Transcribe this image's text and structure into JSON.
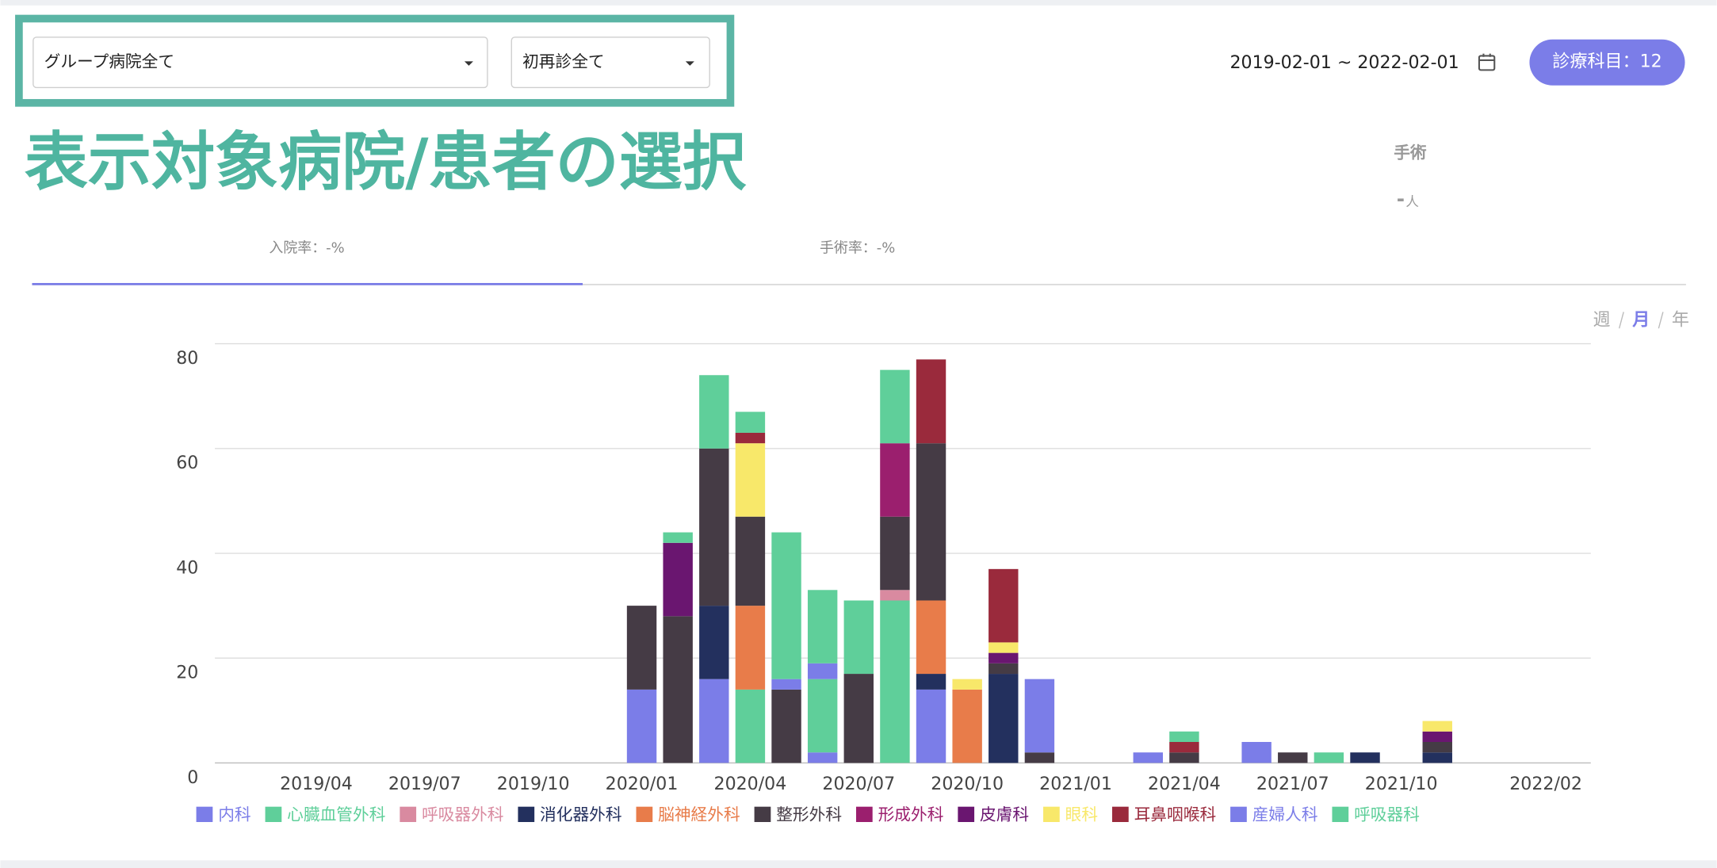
{
  "ui": {
    "hospital_filter": "グループ病院全て",
    "visit_filter": "初再診全て",
    "date_range": "2019-02-01 ~ 2022-02-01",
    "department_button": "診療科目：12",
    "annotation": "表示対象病院/患者の選択",
    "surgery_title": "手術",
    "surgery_count": "-",
    "surgery_unit": "人",
    "tabs": [
      "入院率：-%",
      "手術率：-%"
    ],
    "active_tab_index": 0,
    "period_options": [
      "週",
      "月",
      "年"
    ],
    "active_period_index": 1
  },
  "chart_data": {
    "type": "stacked-bar",
    "categories": [
      null,
      null,
      "2019/04",
      null,
      null,
      "2019/07",
      null,
      null,
      "2019/10",
      null,
      null,
      "2020/01",
      null,
      null,
      "2020/04",
      null,
      null,
      "2020/07",
      null,
      null,
      "2020/10",
      null,
      null,
      "2021/01",
      null,
      null,
      "2021/04",
      null,
      null,
      "2021/07",
      null,
      null,
      "2021/10",
      null,
      null,
      null,
      "2022/02"
    ],
    "ylim": [
      0,
      80
    ],
    "yticks": [
      0,
      20,
      40,
      60,
      80
    ],
    "grid": true,
    "legend": "bottom",
    "series": [
      {
        "name": "内科",
        "color": "#7b7de8",
        "values": [
          0,
          0,
          0,
          0,
          0,
          0,
          0,
          0,
          0,
          0,
          0,
          14,
          0,
          16,
          0,
          0,
          2,
          0,
          0,
          14,
          0,
          0,
          0,
          0,
          0,
          2,
          0,
          0,
          4,
          0,
          0,
          0,
          0,
          0,
          0,
          0,
          0
        ]
      },
      {
        "name": "心臓血管外科",
        "color": "#5fcf9a",
        "values": [
          0,
          0,
          0,
          0,
          0,
          0,
          0,
          0,
          0,
          0,
          0,
          0,
          0,
          0,
          14,
          0,
          14,
          0,
          31,
          0,
          0,
          0,
          0,
          0,
          0,
          0,
          0,
          0,
          0,
          0,
          2,
          0,
          0,
          0,
          0,
          0,
          0
        ]
      },
      {
        "name": "呼吸器外科",
        "color": "#d98aa0",
        "values": [
          0,
          0,
          0,
          0,
          0,
          0,
          0,
          0,
          0,
          0,
          0,
          0,
          0,
          0,
          0,
          0,
          0,
          0,
          2,
          0,
          0,
          0,
          0,
          0,
          0,
          0,
          0,
          0,
          0,
          0,
          0,
          0,
          0,
          0,
          0,
          0,
          0
        ]
      },
      {
        "name": "消化器外科",
        "color": "#23305e",
        "values": [
          0,
          0,
          0,
          0,
          0,
          0,
          0,
          0,
          0,
          0,
          0,
          0,
          0,
          14,
          0,
          0,
          0,
          0,
          0,
          3,
          0,
          17,
          0,
          0,
          0,
          0,
          0,
          0,
          0,
          0,
          0,
          2,
          0,
          2,
          0,
          0,
          0
        ]
      },
      {
        "name": "脳神経外科",
        "color": "#e87c4a",
        "values": [
          0,
          0,
          0,
          0,
          0,
          0,
          0,
          0,
          0,
          0,
          0,
          0,
          0,
          0,
          16,
          0,
          0,
          0,
          0,
          14,
          14,
          0,
          0,
          0,
          0,
          0,
          0,
          0,
          0,
          0,
          0,
          0,
          0,
          0,
          0,
          0,
          0
        ]
      },
      {
        "name": "整形外科",
        "color": "#453b45",
        "values": [
          0,
          0,
          0,
          0,
          0,
          0,
          0,
          0,
          0,
          0,
          0,
          16,
          28,
          30,
          17,
          14,
          0,
          17,
          14,
          30,
          0,
          2,
          2,
          0,
          0,
          0,
          2,
          0,
          0,
          2,
          0,
          0,
          0,
          2,
          0,
          0,
          0
        ]
      },
      {
        "name": "形成外科",
        "color": "#9b1f6e",
        "values": [
          0,
          0,
          0,
          0,
          0,
          0,
          0,
          0,
          0,
          0,
          0,
          0,
          0,
          0,
          0,
          0,
          0,
          0,
          14,
          0,
          0,
          0,
          0,
          0,
          0,
          0,
          0,
          0,
          0,
          0,
          0,
          0,
          0,
          0,
          0,
          0,
          0
        ]
      },
      {
        "name": "皮膚科",
        "color": "#6a1670",
        "values": [
          0,
          0,
          0,
          0,
          0,
          0,
          0,
          0,
          0,
          0,
          0,
          0,
          14,
          0,
          0,
          0,
          0,
          0,
          0,
          0,
          0,
          2,
          0,
          0,
          0,
          0,
          0,
          0,
          0,
          0,
          0,
          0,
          0,
          2,
          0,
          0,
          0
        ]
      },
      {
        "name": "眼科",
        "color": "#f8e86a",
        "values": [
          0,
          0,
          0,
          0,
          0,
          0,
          0,
          0,
          0,
          0,
          0,
          0,
          0,
          0,
          14,
          0,
          0,
          0,
          0,
          0,
          2,
          2,
          0,
          0,
          0,
          0,
          0,
          0,
          0,
          0,
          0,
          0,
          0,
          2,
          0,
          0,
          0
        ]
      },
      {
        "name": "耳鼻咽喉科",
        "color": "#9a2a3c",
        "values": [
          0,
          0,
          0,
          0,
          0,
          0,
          0,
          0,
          0,
          0,
          0,
          0,
          0,
          0,
          2,
          0,
          0,
          0,
          0,
          16,
          0,
          14,
          0,
          0,
          0,
          0,
          2,
          0,
          0,
          0,
          0,
          0,
          0,
          0,
          0,
          0,
          0
        ]
      },
      {
        "name": "産婦人科",
        "color": "#7b7de8",
        "values": [
          0,
          0,
          0,
          0,
          0,
          0,
          0,
          0,
          0,
          0,
          0,
          0,
          0,
          0,
          0,
          2,
          3,
          0,
          0,
          0,
          0,
          0,
          14,
          0,
          0,
          0,
          0,
          0,
          0,
          0,
          0,
          0,
          0,
          0,
          0,
          0,
          0
        ]
      },
      {
        "name": "呼吸器科",
        "color": "#5fcf9a",
        "values": [
          0,
          0,
          0,
          0,
          0,
          0,
          0,
          0,
          0,
          0,
          0,
          0,
          2,
          14,
          4,
          28,
          14,
          14,
          14,
          0,
          0,
          0,
          0,
          0,
          0,
          0,
          2,
          0,
          0,
          0,
          0,
          0,
          0,
          0,
          0,
          0,
          0
        ]
      }
    ]
  }
}
